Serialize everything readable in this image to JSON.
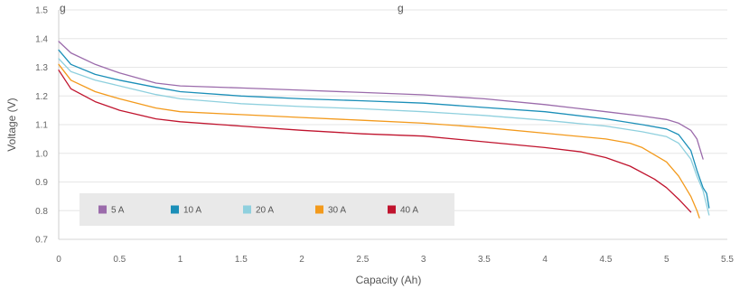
{
  "chart_data": {
    "type": "line",
    "title": "",
    "top_text_left": "g",
    "top_text_right": "g",
    "xlabel": "Capacity (Ah)",
    "ylabel": "Voltage (V)",
    "xlim": [
      0,
      5.5
    ],
    "ylim": [
      0.7,
      1.5
    ],
    "x_ticks": [
      "0",
      "0.5",
      "1",
      "1.5",
      "2",
      "2.5",
      "3",
      "3.5",
      "4",
      "4.5",
      "5",
      "5.5"
    ],
    "y_ticks": [
      "0.7",
      "0.8",
      "0.9",
      "1.0",
      "1.1",
      "1.2",
      "1.3",
      "1.4",
      "1.5"
    ],
    "grid": "horizontal",
    "legend_position": "bottom-left",
    "series": [
      {
        "name": "5 A",
        "color": "#9b6bab",
        "x": [
          0,
          0.1,
          0.3,
          0.5,
          0.8,
          1.0,
          1.5,
          2.0,
          2.5,
          3.0,
          3.5,
          4.0,
          4.5,
          4.8,
          5.0,
          5.1,
          5.2,
          5.25,
          5.3
        ],
        "y": [
          1.39,
          1.35,
          1.31,
          1.28,
          1.245,
          1.235,
          1.228,
          1.22,
          1.212,
          1.204,
          1.19,
          1.17,
          1.145,
          1.13,
          1.118,
          1.105,
          1.08,
          1.05,
          0.98
        ]
      },
      {
        "name": "10 A",
        "color": "#1b8fb8",
        "x": [
          0,
          0.1,
          0.3,
          0.5,
          0.8,
          1.0,
          1.5,
          2.0,
          2.5,
          3.0,
          3.5,
          4.0,
          4.5,
          4.8,
          5.0,
          5.1,
          5.2,
          5.25,
          5.3,
          5.33,
          5.35
        ],
        "y": [
          1.36,
          1.31,
          1.275,
          1.255,
          1.23,
          1.215,
          1.2,
          1.19,
          1.183,
          1.175,
          1.16,
          1.145,
          1.12,
          1.1,
          1.085,
          1.065,
          1.01,
          0.94,
          0.88,
          0.86,
          0.81
        ]
      },
      {
        "name": "20 A",
        "color": "#8fd0de",
        "x": [
          0,
          0.1,
          0.3,
          0.5,
          0.8,
          1.0,
          1.5,
          2.0,
          2.5,
          3.0,
          3.5,
          4.0,
          4.5,
          4.8,
          5.0,
          5.1,
          5.2,
          5.25,
          5.3,
          5.35
        ],
        "y": [
          1.33,
          1.285,
          1.255,
          1.235,
          1.205,
          1.19,
          1.173,
          1.163,
          1.155,
          1.145,
          1.132,
          1.115,
          1.095,
          1.075,
          1.058,
          1.035,
          0.98,
          0.92,
          0.87,
          0.785
        ]
      },
      {
        "name": "30 A",
        "color": "#f39a1c",
        "x": [
          0,
          0.1,
          0.3,
          0.5,
          0.8,
          1.0,
          1.5,
          2.0,
          2.5,
          3.0,
          3.5,
          4.0,
          4.5,
          4.7,
          4.8,
          5.0,
          5.1,
          5.2,
          5.25,
          5.27
        ],
        "y": [
          1.31,
          1.255,
          1.215,
          1.19,
          1.158,
          1.145,
          1.135,
          1.125,
          1.115,
          1.105,
          1.09,
          1.07,
          1.05,
          1.035,
          1.02,
          0.97,
          0.92,
          0.85,
          0.8,
          0.775
        ]
      },
      {
        "name": "40 A",
        "color": "#c0142e",
        "x": [
          0,
          0.1,
          0.3,
          0.5,
          0.8,
          1.0,
          1.5,
          2.0,
          2.5,
          3.0,
          3.5,
          4.0,
          4.3,
          4.5,
          4.7,
          4.9,
          5.0,
          5.1,
          5.2
        ],
        "y": [
          1.29,
          1.225,
          1.18,
          1.15,
          1.12,
          1.11,
          1.095,
          1.08,
          1.068,
          1.06,
          1.04,
          1.02,
          1.005,
          0.985,
          0.955,
          0.91,
          0.88,
          0.84,
          0.795
        ]
      }
    ]
  }
}
